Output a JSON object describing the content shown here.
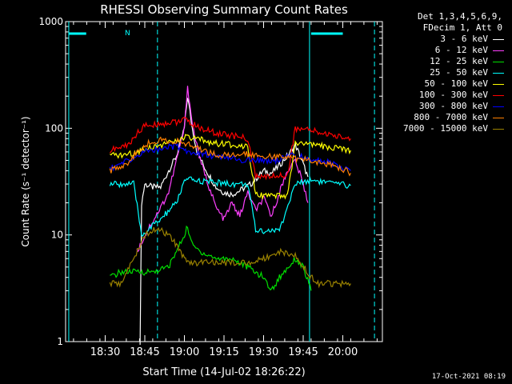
{
  "chart_data": {
    "type": "line",
    "title": "RHESSI Observing Summary Count Rates",
    "xlabel": "Start Time (14-Jul-02 18:26:22)",
    "ylabel": "Count Rate (s⁻¹ detector⁻¹)",
    "yscale": "log",
    "ylim": [
      1,
      1000
    ],
    "ytick_labels": [
      "1",
      "10",
      "100",
      "1000"
    ],
    "xlim_minutes": [
      18.25,
      20.25
    ],
    "x_tick_labels": [
      "18:30",
      "18:45",
      "19:00",
      "19:15",
      "19:30",
      "19:45",
      "20:00"
    ],
    "x_ticks_hours": [
      18.5,
      18.75,
      19.0,
      19.25,
      19.5,
      19.75,
      20.0
    ],
    "grid": false,
    "legend_position": "right",
    "legend_header": [
      "Det 1,3,4,5,6,9,",
      "FDecim 1, Att 0"
    ],
    "annotation_N": "N",
    "attenuator_bars": [
      [
        18.27,
        18.38
      ],
      [
        19.8,
        20.0
      ]
    ],
    "markers_cyan_vertical": [
      18.27,
      18.83,
      19.79,
      20.2
    ],
    "series": [
      {
        "name": "3 - 6 keV",
        "color": "#ffffff",
        "x": [
          18.72,
          18.73,
          18.75,
          18.8,
          18.85,
          18.9,
          18.95,
          19.0,
          19.02,
          19.05,
          19.08,
          19.12,
          19.2,
          19.25,
          19.3,
          19.35,
          19.42,
          19.5,
          19.55,
          19.6,
          19.67,
          19.7,
          19.73,
          19.78
        ],
        "y": [
          1,
          20,
          30,
          28,
          28,
          40,
          55,
          100,
          200,
          100,
          60,
          45,
          28,
          25,
          24,
          26,
          30,
          40,
          38,
          45,
          60,
          70,
          55,
          35
        ]
      },
      {
        "name": "6 - 12 keV",
        "color": "#ff40ff",
        "x": [
          18.7,
          18.72,
          18.78,
          18.85,
          18.9,
          18.95,
          19.0,
          19.02,
          19.05,
          19.1,
          19.15,
          19.2,
          19.25,
          19.3,
          19.35,
          19.4,
          19.45,
          19.5,
          19.55,
          19.6,
          19.65,
          19.7,
          19.75,
          19.78
        ],
        "y": [
          7,
          8,
          12,
          18,
          25,
          50,
          100,
          250,
          110,
          50,
          30,
          18,
          14,
          20,
          15,
          25,
          17,
          22,
          15,
          25,
          40,
          50,
          30,
          20
        ]
      },
      {
        "name": "12 - 25 keV",
        "color": "#00e000",
        "x": [
          18.53,
          18.6,
          18.7,
          18.8,
          18.9,
          18.95,
          19.0,
          19.02,
          19.05,
          19.1,
          19.2,
          19.3,
          19.4,
          19.5,
          19.55,
          19.6,
          19.7,
          19.75,
          19.8
        ],
        "y": [
          4,
          4.5,
          4.5,
          4.5,
          5,
          7,
          10,
          12,
          8,
          7,
          6,
          6,
          5,
          4,
          3,
          4,
          6,
          5,
          3
        ]
      },
      {
        "name": "25 - 50 keV",
        "color": "#00ffff",
        "x": [
          18.53,
          18.68,
          18.73,
          18.85,
          18.95,
          19.0,
          19.05,
          19.1,
          19.2,
          19.3,
          19.4,
          19.45,
          19.5,
          19.6,
          19.7,
          19.8,
          19.95,
          20.05
        ],
        "y": [
          30,
          30,
          10,
          14,
          20,
          32,
          33,
          32,
          31,
          30,
          30,
          11,
          11,
          11,
          30,
          33,
          30,
          29
        ]
      },
      {
        "name": "50 - 100 keV",
        "color": "#ffff00",
        "x": [
          18.53,
          18.65,
          18.7,
          18.75,
          18.85,
          18.95,
          19.0,
          19.05,
          19.1,
          19.15,
          19.2,
          19.3,
          19.4,
          19.45,
          19.5,
          19.6,
          19.65,
          19.7,
          19.8,
          19.95,
          20.05
        ],
        "y": [
          55,
          57,
          60,
          65,
          70,
          75,
          82,
          80,
          78,
          75,
          72,
          70,
          68,
          25,
          23,
          23,
          23,
          72,
          70,
          65,
          62
        ]
      },
      {
        "name": "100 - 300 keV",
        "color": "#ff0000",
        "x": [
          18.53,
          18.65,
          18.7,
          18.75,
          18.85,
          18.95,
          19.0,
          19.05,
          19.1,
          19.15,
          19.2,
          19.3,
          19.4,
          19.45,
          19.5,
          19.6,
          19.65,
          19.7,
          19.8,
          19.95,
          20.05
        ],
        "y": [
          62,
          70,
          90,
          105,
          110,
          115,
          120,
          110,
          100,
          95,
          90,
          85,
          80,
          35,
          35,
          36,
          36,
          100,
          95,
          85,
          80
        ]
      },
      {
        "name": "300 - 800 keV",
        "color": "#0000ff",
        "x": [
          18.53,
          18.65,
          18.7,
          18.75,
          18.85,
          18.95,
          19.0,
          19.05,
          19.1,
          19.15,
          19.2,
          19.3,
          19.4,
          19.45,
          19.5,
          19.6,
          19.65,
          19.7,
          19.8,
          19.95,
          20.05
        ],
        "y": [
          42,
          50,
          55,
          60,
          65,
          68,
          62,
          60,
          58,
          56,
          54,
          52,
          50,
          50,
          50,
          50,
          55,
          55,
          52,
          46,
          40
        ]
      },
      {
        "name": "800 - 7000 keV",
        "color": "#ff8000",
        "x": [
          18.53,
          18.65,
          18.7,
          18.75,
          18.85,
          18.95,
          19.0,
          19.05,
          19.1,
          19.15,
          19.2,
          19.3,
          19.4,
          19.5,
          19.6,
          19.7,
          19.8,
          19.95,
          20.05
        ],
        "y": [
          40,
          48,
          60,
          70,
          78,
          75,
          72,
          68,
          64,
          60,
          57,
          55,
          58,
          55,
          54,
          52,
          50,
          45,
          38
        ]
      },
      {
        "name": "7000 - 15000 keV",
        "color": "#9a8200",
        "x": [
          18.53,
          18.6,
          18.68,
          18.72,
          18.75,
          18.8,
          18.85,
          18.9,
          18.95,
          19.0,
          19.05,
          19.1,
          19.2,
          19.3,
          19.4,
          19.5,
          19.6,
          19.7,
          19.8,
          19.85,
          19.95,
          20.05
        ],
        "y": [
          3.5,
          3.5,
          6,
          8,
          10,
          11,
          11,
          10,
          8,
          6,
          5.5,
          5.5,
          5.5,
          5.5,
          5.5,
          6,
          7,
          6.5,
          4,
          3.5,
          3.5,
          3.5
        ]
      }
    ]
  },
  "footer_date": "17-Oct-2021 08:19"
}
